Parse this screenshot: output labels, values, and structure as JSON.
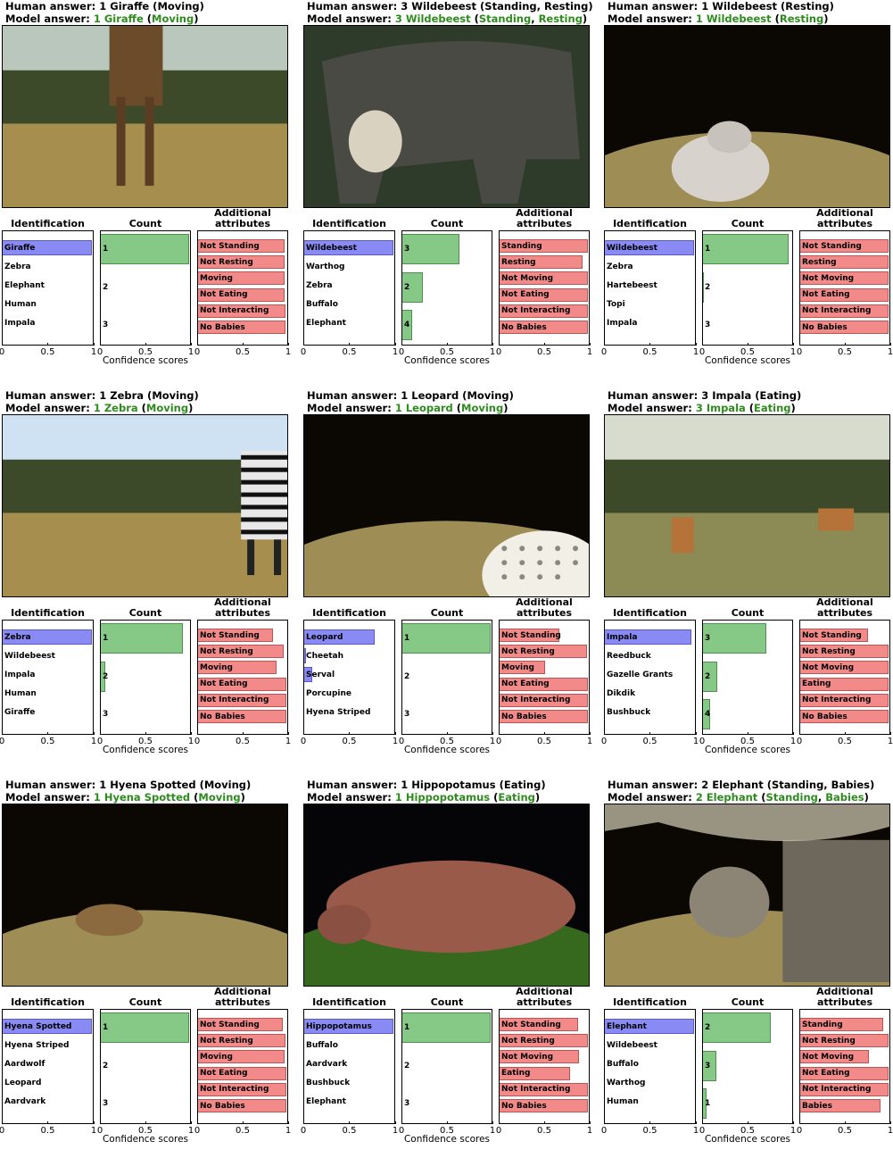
{
  "labels": {
    "human_prefix": "Human answer: ",
    "model_prefix": "Model  answer: ",
    "id_title": "Identification",
    "count_title": "Count",
    "attr_title_1": "Additional",
    "attr_title_2": "attributes",
    "xlabel": "Confidence scores",
    "ticks": [
      "0",
      "0.5",
      "1"
    ]
  },
  "colors": {
    "identification_bar": "#8a8af5",
    "count_bar": "#86c987",
    "attribute_bar": "#f38a8a",
    "correct_text": "#2e8b1e"
  },
  "chart_data": [
    {
      "type": "bar",
      "photo_icon": "giraffe",
      "human_answer": "1 Giraffe (Moving)",
      "model_answer": {
        "count_species": "1 Giraffe",
        "attributes": [
          "Moving"
        ]
      },
      "identification": {
        "categories": [
          "Giraffe",
          "Zebra",
          "Elephant",
          "Human",
          "Impala"
        ],
        "values": [
          1.0,
          0,
          0,
          0,
          0
        ]
      },
      "count": {
        "categories": [
          "1",
          "2",
          "3"
        ],
        "values": [
          1.0,
          0,
          0
        ]
      },
      "attributes": {
        "categories": [
          "Not Standing",
          "Not Resting",
          "Moving",
          "Not Eating",
          "Not Interacting",
          "No Babies"
        ],
        "values": [
          0.98,
          0.98,
          0.98,
          0.98,
          0.99,
          0.99
        ]
      },
      "xlim": [
        0,
        1
      ]
    },
    {
      "type": "bar",
      "photo_icon": "wildebeest",
      "human_answer": "3 Wildebeest (Standing, Resting)",
      "model_answer": {
        "count_species": "3 Wildebeest",
        "attributes": [
          "Standing",
          "Resting"
        ]
      },
      "identification": {
        "categories": [
          "Wildebeest",
          "Warthog",
          "Zebra",
          "Buffalo",
          "Elephant"
        ],
        "values": [
          1.0,
          0,
          0,
          0,
          0
        ]
      },
      "count": {
        "categories": [
          "3",
          "2",
          "4"
        ],
        "values": [
          0.65,
          0.24,
          0.12
        ]
      },
      "attributes": {
        "categories": [
          "Standing",
          "Resting",
          "Not Moving",
          "Not Eating",
          "Not Interacting",
          "No Babies"
        ],
        "values": [
          1.0,
          0.94,
          1.0,
          1.0,
          1.0,
          1.0
        ]
      },
      "xlim": [
        0,
        1
      ]
    },
    {
      "type": "bar",
      "photo_icon": "wildebeest",
      "human_answer": "1 Wildebeest (Resting)",
      "model_answer": {
        "count_species": "1 Wildebeest",
        "attributes": [
          "Resting"
        ]
      },
      "identification": {
        "categories": [
          "Wildebeest",
          "Zebra",
          "Hartebeest",
          "Topi",
          "Impala"
        ],
        "values": [
          1.0,
          0,
          0,
          0,
          0
        ]
      },
      "count": {
        "categories": [
          "1",
          "2",
          "3"
        ],
        "values": [
          0.97,
          0.02,
          0
        ]
      },
      "attributes": {
        "categories": [
          "Not Standing",
          "Resting",
          "Not Moving",
          "Not Eating",
          "Not Interacting",
          "No Babies"
        ],
        "values": [
          1.0,
          1.0,
          1.0,
          1.0,
          1.0,
          1.0
        ]
      },
      "xlim": [
        0,
        1
      ]
    },
    {
      "type": "bar",
      "photo_icon": "zebra",
      "human_answer": "1 Zebra (Moving)",
      "model_answer": {
        "count_species": "1 Zebra",
        "attributes": [
          "Moving"
        ]
      },
      "identification": {
        "categories": [
          "Zebra",
          "Wildebeest",
          "Impala",
          "Human",
          "Giraffe"
        ],
        "values": [
          1.0,
          0,
          0,
          0,
          0
        ]
      },
      "count": {
        "categories": [
          "1",
          "2",
          "3"
        ],
        "values": [
          0.93,
          0.06,
          0
        ]
      },
      "attributes": {
        "categories": [
          "Not Standing",
          "Not Resting",
          "Moving",
          "Not Eating",
          "Not Interacting",
          "No Babies"
        ],
        "values": [
          0.85,
          0.97,
          0.89,
          1.0,
          1.0,
          1.0
        ]
      },
      "xlim": [
        0,
        1
      ]
    },
    {
      "type": "bar",
      "photo_icon": "leopard",
      "human_answer": "1 Leopard (Moving)",
      "model_answer": {
        "count_species": "1 Leopard",
        "attributes": [
          "Moving"
        ]
      },
      "identification": {
        "categories": [
          "Leopard",
          "Cheetah",
          "Serval",
          "Porcupine",
          "Hyena Striped"
        ],
        "values": [
          0.79,
          0.03,
          0.1,
          0,
          0
        ]
      },
      "count": {
        "categories": [
          "1",
          "2",
          "3"
        ],
        "values": [
          1.0,
          0,
          0
        ]
      },
      "attributes": {
        "categories": [
          "Not Standing",
          "Not Resting",
          "Moving",
          "Not Eating",
          "Not Interacting",
          "No Babies"
        ],
        "values": [
          0.68,
          0.99,
          0.52,
          1.0,
          1.0,
          1.0
        ]
      },
      "xlim": [
        0,
        1
      ]
    },
    {
      "type": "bar",
      "photo_icon": "impala",
      "human_answer": "3 Impala (Eating)",
      "model_answer": {
        "count_species": "3 Impala",
        "attributes": [
          "Eating"
        ]
      },
      "identification": {
        "categories": [
          "Impala",
          "Reedbuck",
          "Gazelle Grants",
          "Dikdik",
          "Bushbuck"
        ],
        "values": [
          0.97,
          0,
          0,
          0,
          0
        ]
      },
      "count": {
        "categories": [
          "3",
          "2",
          "4"
        ],
        "values": [
          0.72,
          0.17,
          0.09
        ]
      },
      "attributes": {
        "categories": [
          "Not Standing",
          "Not Resting",
          "Not Moving",
          "Eating",
          "Not Interacting",
          "No Babies"
        ],
        "values": [
          0.77,
          1.0,
          1.0,
          1.0,
          1.0,
          1.0
        ]
      },
      "xlim": [
        0,
        1
      ]
    },
    {
      "type": "bar",
      "photo_icon": "hyena",
      "human_answer": "1 Hyena Spotted (Moving)",
      "model_answer": {
        "count_species": "1 Hyena Spotted",
        "attributes": [
          "Moving"
        ]
      },
      "identification": {
        "categories": [
          "Hyena Spotted",
          "Hyena Striped",
          "Aardwolf",
          "Leopard",
          "Aardvark"
        ],
        "values": [
          1.0,
          0,
          0,
          0,
          0
        ]
      },
      "count": {
        "categories": [
          "1",
          "2",
          "3"
        ],
        "values": [
          1.0,
          0,
          0
        ]
      },
      "attributes": {
        "categories": [
          "Not Standing",
          "Not Resting",
          "Moving",
          "Not Eating",
          "Not Interacting",
          "No Babies"
        ],
        "values": [
          0.96,
          0.99,
          0.98,
          1.0,
          1.0,
          1.0
        ]
      },
      "xlim": [
        0,
        1
      ]
    },
    {
      "type": "bar",
      "photo_icon": "hippopotamus",
      "human_answer": "1 Hippopotamus (Eating)",
      "model_answer": {
        "count_species": "1 Hippopotamus",
        "attributes": [
          "Eating"
        ]
      },
      "identification": {
        "categories": [
          "Hippopotamus",
          "Buffalo",
          "Aardvark",
          "Bushbuck",
          "Elephant"
        ],
        "values": [
          1.0,
          0,
          0,
          0,
          0
        ]
      },
      "count": {
        "categories": [
          "1",
          "2",
          "3"
        ],
        "values": [
          1.0,
          0,
          0
        ]
      },
      "attributes": {
        "categories": [
          "Not Standing",
          "Not Resting",
          "Not Moving",
          "Eating",
          "Not Interacting",
          "No Babies"
        ],
        "values": [
          0.89,
          1.0,
          0.9,
          0.8,
          1.0,
          1.0
        ]
      },
      "xlim": [
        0,
        1
      ]
    },
    {
      "type": "bar",
      "photo_icon": "elephant",
      "human_answer": "2 Elephant (Standing, Babies)",
      "model_answer": {
        "count_species": "2 Elephant",
        "attributes": [
          "Standing",
          "Babies"
        ]
      },
      "identification": {
        "categories": [
          "Elephant",
          "Wildebeest",
          "Buffalo",
          "Warthog",
          "Human"
        ],
        "values": [
          1.0,
          0,
          0,
          0,
          0
        ]
      },
      "count": {
        "categories": [
          "2",
          "3",
          "1"
        ],
        "values": [
          0.77,
          0.16,
          0.05
        ]
      },
      "attributes": {
        "categories": [
          "Standing",
          "Not Resting",
          "Not Moving",
          "Not Eating",
          "Not Interacting",
          "Babies"
        ],
        "values": [
          0.94,
          1.0,
          0.78,
          1.0,
          1.0,
          0.91
        ]
      },
      "xlim": [
        0,
        1
      ]
    }
  ]
}
